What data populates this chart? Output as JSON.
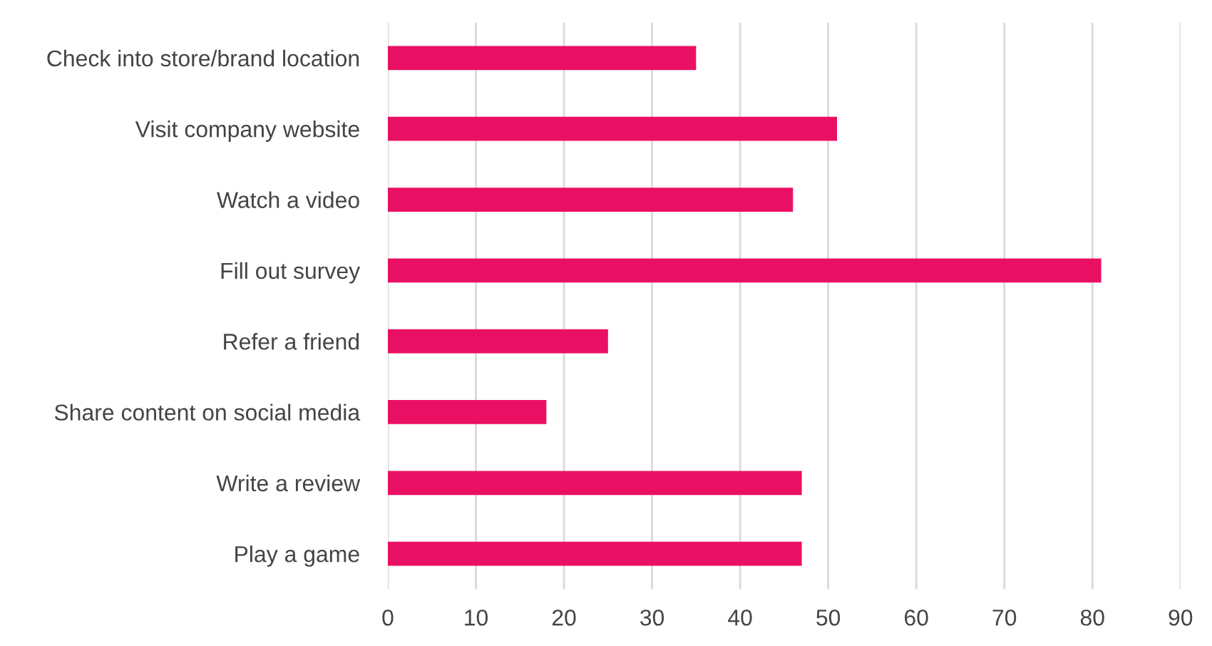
{
  "chart_data": {
    "type": "bar",
    "orientation": "horizontal",
    "categories": [
      "Check into store/brand location",
      "Visit company website",
      "Watch a video",
      "Fill out survey",
      "Refer a friend",
      "Share content on social media",
      "Write a review",
      "Play a game"
    ],
    "values": [
      35,
      51,
      46,
      81,
      25,
      18,
      47,
      47
    ],
    "color": "#e91063",
    "xlim": [
      0,
      90
    ],
    "xticks": [
      0,
      10,
      20,
      30,
      40,
      50,
      60,
      70,
      80,
      90
    ],
    "grid": "x",
    "legend": false
  }
}
